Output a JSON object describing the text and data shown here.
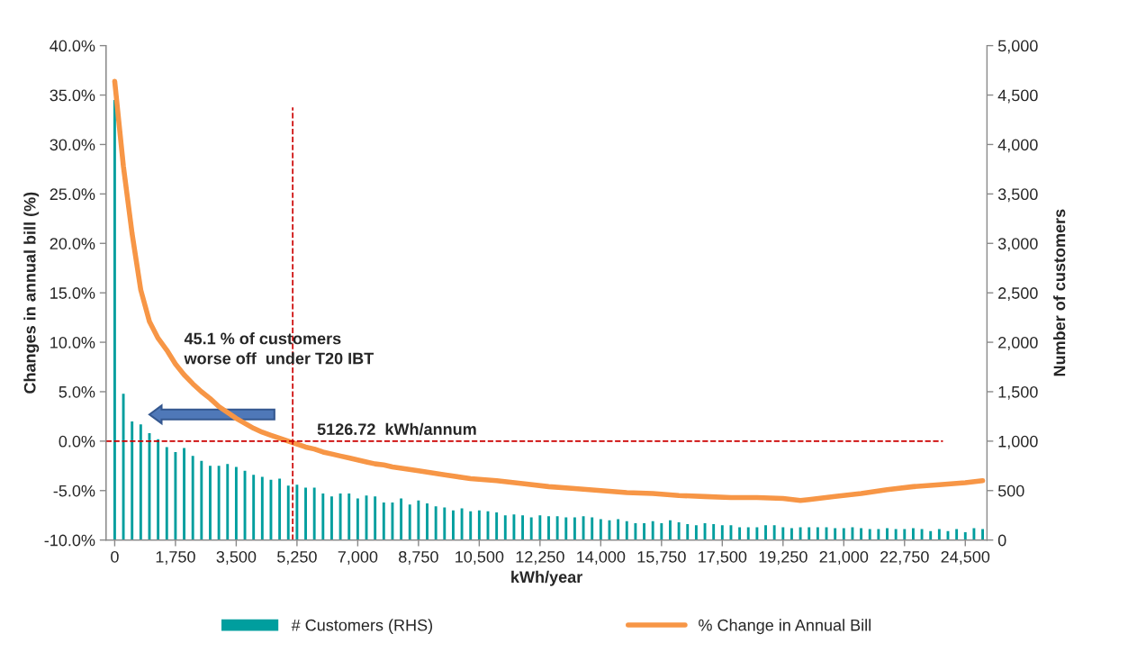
{
  "chart_data": {
    "type": "bar",
    "xlabel": "kWh/year",
    "ylabel": "Changes in annual bill (%)",
    "y2label": "Number of customers",
    "xlim": [
      -250,
      25125
    ],
    "xticks": [
      0,
      {
        "value": 1750,
        "label": "1,750"
      },
      {
        "value": 3500,
        "label": "3,500"
      },
      {
        "value": 5250,
        "label": "5,250"
      },
      {
        "value": 7000,
        "label": "7,000"
      },
      {
        "value": 8750,
        "label": "8,750"
      },
      {
        "value": 10500,
        "label": "10,500"
      },
      {
        "value": 12250,
        "label": "12,250"
      },
      {
        "value": 14000,
        "label": "14,000"
      },
      {
        "value": 15750,
        "label": "15,750"
      },
      {
        "value": 17500,
        "label": "17,500"
      },
      {
        "value": 19250,
        "label": "19,250"
      },
      {
        "value": 21000,
        "label": "21,000"
      },
      {
        "value": 22750,
        "label": "22,750"
      },
      {
        "value": 24500,
        "label": "24,500"
      }
    ],
    "ylim": [
      -10,
      40
    ],
    "yticks": [
      {
        "value": -10,
        "label": "-10.0%"
      },
      {
        "value": -5,
        "label": "-5.0%"
      },
      {
        "value": 0,
        "label": "0.0%"
      },
      {
        "value": 5,
        "label": "5.0%"
      },
      {
        "value": 10,
        "label": "10.0%"
      },
      {
        "value": 15,
        "label": "15.0%"
      },
      {
        "value": 20,
        "label": "20.0%"
      },
      {
        "value": 25,
        "label": "25.0%"
      },
      {
        "value": 30,
        "label": "30.0%"
      },
      {
        "value": 35,
        "label": "35.0%"
      },
      {
        "value": 40,
        "label": "40.0%"
      }
    ],
    "y2lim": [
      0,
      5000
    ],
    "y2ticks": [
      0,
      {
        "value": 500,
        "label": "500"
      },
      {
        "value": 1000,
        "label": "1,000"
      },
      {
        "value": 1500,
        "label": "1,500"
      },
      {
        "value": 2000,
        "label": "2,000"
      },
      {
        "value": 2500,
        "label": "2,500"
      },
      {
        "value": 3000,
        "label": "3,000"
      },
      {
        "value": 3500,
        "label": "3,500"
      },
      {
        "value": 4000,
        "label": "4,000"
      },
      {
        "value": 4500,
        "label": "4,500"
      },
      {
        "value": 5000,
        "label": "5,000"
      }
    ],
    "grid": false,
    "legend": "bottom",
    "series": [
      {
        "name": "# Customers (RHS)",
        "axis": "y2",
        "color": "#009e9e",
        "x": [
          0,
          250,
          500,
          750,
          1000,
          1250,
          1500,
          1750,
          2000,
          2250,
          2500,
          2750,
          3000,
          3250,
          3500,
          3750,
          4000,
          4250,
          4500,
          4750,
          5000,
          5250,
          5500,
          5750,
          6000,
          6250,
          6500,
          6750,
          7000,
          7250,
          7500,
          7750,
          8000,
          8250,
          8500,
          8750,
          9000,
          9250,
          9500,
          9750,
          10000,
          10250,
          10500,
          10750,
          11000,
          11250,
          11500,
          11750,
          12000,
          12250,
          12500,
          12750,
          13000,
          13250,
          13500,
          13750,
          14000,
          14250,
          14500,
          14750,
          15000,
          15250,
          15500,
          15750,
          16000,
          16250,
          16500,
          16750,
          17000,
          17250,
          17500,
          17750,
          18000,
          18250,
          18500,
          18750,
          19000,
          19250,
          19500,
          19750,
          20000,
          20250,
          20500,
          20750,
          21000,
          21250,
          21500,
          21750,
          22000,
          22250,
          22500,
          22750,
          23000,
          23250,
          23500,
          23750,
          24000,
          24250,
          24500,
          24750,
          25000
        ],
        "values": [
          4450,
          1480,
          1200,
          1170,
          1080,
          1020,
          940,
          890,
          930,
          850,
          800,
          750,
          750,
          770,
          740,
          700,
          660,
          640,
          610,
          620,
          550,
          560,
          530,
          530,
          470,
          440,
          470,
          470,
          420,
          450,
          440,
          380,
          380,
          420,
          360,
          400,
          370,
          340,
          330,
          300,
          320,
          290,
          300,
          290,
          280,
          250,
          260,
          250,
          230,
          250,
          240,
          240,
          230,
          230,
          240,
          230,
          210,
          200,
          210,
          190,
          170,
          170,
          190,
          170,
          200,
          180,
          160,
          150,
          170,
          160,
          150,
          150,
          130,
          130,
          130,
          150,
          150,
          130,
          120,
          130,
          130,
          130,
          130,
          120,
          120,
          130,
          120,
          110,
          110,
          120,
          110,
          110,
          120,
          110,
          90,
          110,
          90,
          110,
          80,
          120,
          110
        ]
      },
      {
        "name": "% Change in Annual Bill",
        "type": "line",
        "color": "#f79646",
        "x": [
          0,
          250,
          500,
          750,
          1000,
          1250,
          1500,
          1750,
          2000,
          2250,
          2500,
          2750,
          3000,
          3250,
          3500,
          3750,
          4000,
          4250,
          4500,
          4750,
          5000,
          5250,
          5500,
          5750,
          6000,
          6250,
          6500,
          6750,
          7000,
          7250,
          7500,
          7750,
          8000,
          8750,
          9500,
          10250,
          11000,
          11750,
          12500,
          13250,
          14000,
          14750,
          15500,
          16250,
          17000,
          17750,
          18500,
          19250,
          19750,
          20000,
          20750,
          21500,
          22250,
          23000,
          23750,
          24500,
          25000
        ],
        "values": [
          36.4,
          27.8,
          21.0,
          15.3,
          12.1,
          10.4,
          9.2,
          7.8,
          6.7,
          5.8,
          5.0,
          4.3,
          3.5,
          2.9,
          2.3,
          1.8,
          1.3,
          0.9,
          0.6,
          0.3,
          0.0,
          -0.3,
          -0.6,
          -0.8,
          -1.1,
          -1.3,
          -1.5,
          -1.7,
          -1.9,
          -2.1,
          -2.3,
          -2.4,
          -2.6,
          -3.0,
          -3.4,
          -3.8,
          -4.0,
          -4.3,
          -4.6,
          -4.8,
          -5.0,
          -5.2,
          -5.3,
          -5.5,
          -5.6,
          -5.7,
          -5.7,
          -5.8,
          -6.0,
          -5.9,
          -5.6,
          -5.3,
          -4.9,
          -4.6,
          -4.4,
          -4.2,
          -4.0
        ]
      }
    ],
    "ref_lines": [
      {
        "axis": "y",
        "value": 0,
        "color": "#cc0000",
        "line_style": "dashed"
      },
      {
        "axis": "x",
        "value": 5126.72,
        "label": "5126.72  kWh/annum",
        "color": "#cc0000",
        "line_style": "dashed"
      }
    ],
    "annotations": [
      "45.1 % of customers\nworse off  under T20 IBT"
    ]
  }
}
